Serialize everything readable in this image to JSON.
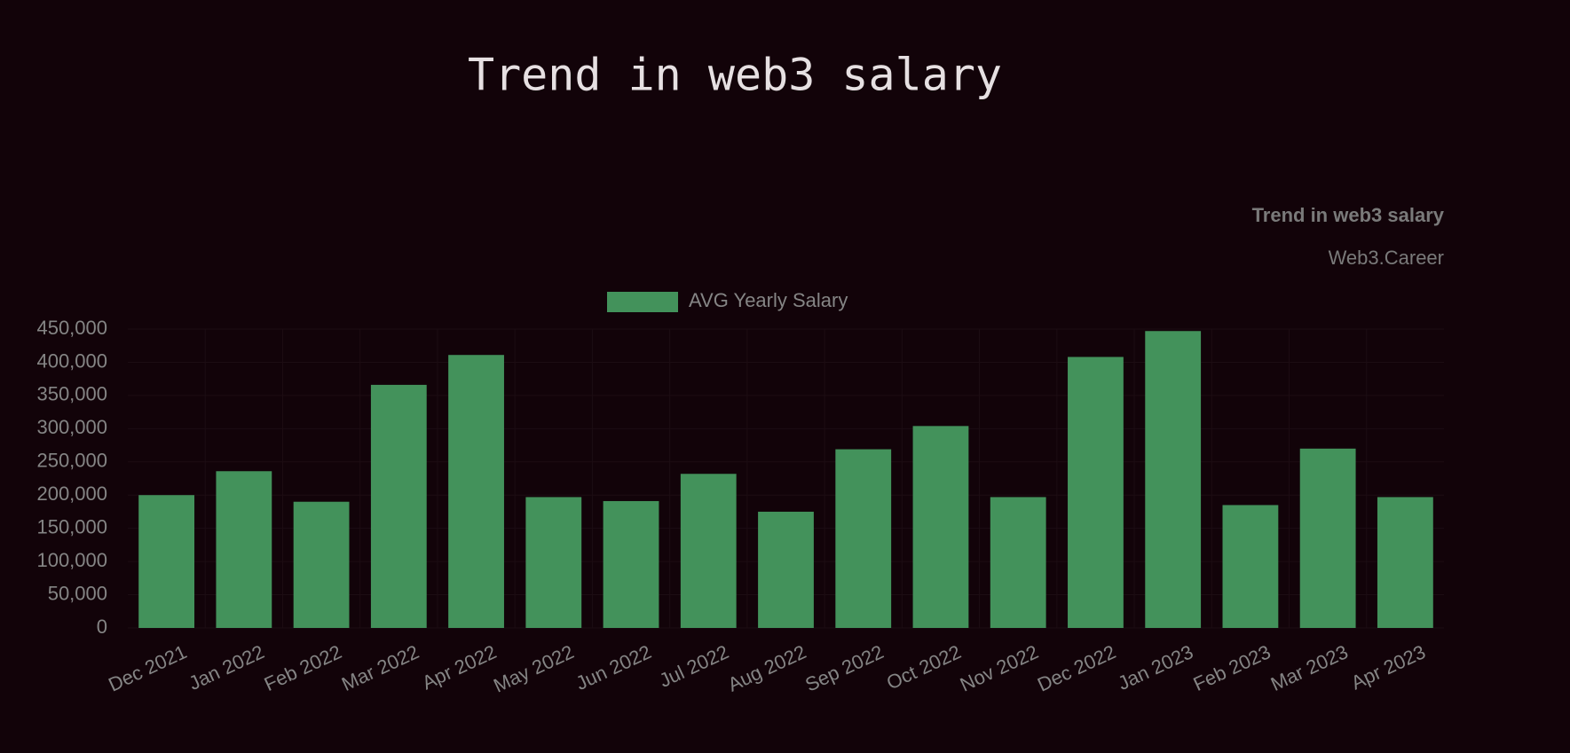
{
  "page_title": "Trend in web3 salary",
  "chart_data": {
    "type": "bar",
    "title": "Trend in web3 salary",
    "subtitle": "Web3.Career",
    "categories": [
      "Dec 2021",
      "Jan 2022",
      "Feb 2022",
      "Mar 2022",
      "Apr 2022",
      "May 2022",
      "Jun 2022",
      "Jul 2022",
      "Aug 2022",
      "Sep 2022",
      "Oct 2022",
      "Nov 2022",
      "Dec 2022",
      "Jan 2023",
      "Feb 2023",
      "Mar 2023",
      "Apr 2023"
    ],
    "series": [
      {
        "name": "AVG Yearly Salary",
        "color": "#43925b",
        "values": [
          200000,
          236000,
          190000,
          366000,
          411000,
          197000,
          191000,
          232000,
          175000,
          269000,
          304000,
          197000,
          408000,
          447000,
          185000,
          270000,
          197000
        ]
      }
    ],
    "ylim": [
      0,
      450000
    ],
    "yticks": [
      0,
      {
        "value": 50000,
        "label": "50,000"
      },
      {
        "value": 100000,
        "label": "100,000"
      },
      {
        "value": 150000,
        "label": "150,000"
      },
      {
        "value": 200000,
        "label": "200,000"
      },
      {
        "value": 250000,
        "label": "250,000"
      },
      {
        "value": 300000,
        "label": "300,000"
      },
      {
        "value": 350000,
        "label": "350,000"
      },
      {
        "value": 400000,
        "label": "400,000"
      },
      {
        "value": 450000,
        "label": "450,000"
      }
    ],
    "grid": true,
    "legend": "top"
  }
}
